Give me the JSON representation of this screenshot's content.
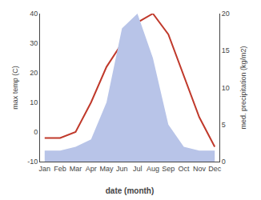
{
  "chart_data": {
    "type": "line",
    "categories": [
      "Jan",
      "Feb",
      "Mar",
      "Apr",
      "May",
      "Jun",
      "Jul",
      "Aug",
      "Sep",
      "Oct",
      "Nov",
      "Dec"
    ],
    "series": [
      {
        "type": "area",
        "axis": "y2",
        "color": "#b8c4e8",
        "values": [
          1.5,
          1.5,
          2,
          3,
          8,
          18,
          20,
          14,
          5,
          2,
          1.5,
          1.5
        ]
      },
      {
        "type": "line",
        "color": "#c0392b",
        "values": [
          -2,
          -2,
          0,
          10,
          22,
          30,
          37,
          40,
          33,
          19,
          5,
          -5
        ]
      }
    ],
    "xlabel": "date (month)",
    "ylabel": "max temp (C)",
    "y2label": "med. precipitation (kg/m2)",
    "ylim": [
      -10,
      40
    ],
    "yticks": [
      -10,
      0,
      10,
      20,
      30,
      40
    ],
    "y2lim": [
      0,
      20
    ],
    "y2ticks": [
      0,
      5,
      10,
      15,
      20
    ],
    "grid": false
  }
}
